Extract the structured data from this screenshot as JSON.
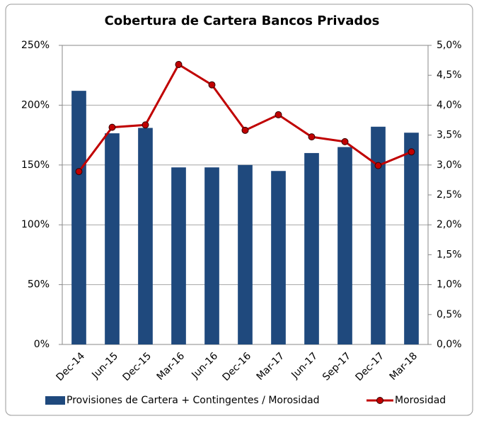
{
  "chart_data": {
    "type": "combo",
    "title": "Cobertura de Cartera Bancos Privados",
    "categories": [
      "Dec-14",
      "Jun-15",
      "Dec-15",
      "Mar-16",
      "Jun-16",
      "Dec-16",
      "Mar-17",
      "Jun-17",
      "Sep-17",
      "Dec-17",
      "Mar-18"
    ],
    "series": [
      {
        "name": "Provisiones de Cartera + Contingentes / Morosidad",
        "type": "bar",
        "color": "#1f497d",
        "axis": "y",
        "values": [
          212,
          176.5,
          181,
          148,
          148,
          150,
          145,
          160,
          165,
          182,
          177
        ]
      },
      {
        "name": "Morosidad",
        "type": "line",
        "color": "#c00000",
        "axis": "y2",
        "values": [
          2.89,
          3.63,
          3.67,
          4.68,
          4.34,
          3.58,
          3.84,
          3.47,
          3.39,
          2.99,
          3.22
        ]
      }
    ],
    "ylim": [
      0,
      250
    ],
    "yticks": [
      {
        "value": 0,
        "label": "0%"
      },
      {
        "value": 50,
        "label": "50%"
      },
      {
        "value": 100,
        "label": "100%"
      },
      {
        "value": 150,
        "label": "150%"
      },
      {
        "value": 200,
        "label": "200%"
      },
      {
        "value": 250,
        "label": "250%"
      }
    ],
    "y2lim": [
      0,
      5
    ],
    "y2ticks": [
      {
        "value": 0,
        "label": "0,0%"
      },
      {
        "value": 0.5,
        "label": "0,5%"
      },
      {
        "value": 1,
        "label": "1,0%"
      },
      {
        "value": 1.5,
        "label": "1,5%"
      },
      {
        "value": 2,
        "label": "2,0%"
      },
      {
        "value": 2.5,
        "label": "2,5%"
      },
      {
        "value": 3,
        "label": "3,0%"
      },
      {
        "value": 3.5,
        "label": "3,5%"
      },
      {
        "value": 4,
        "label": "4,0%"
      },
      {
        "value": 4.5,
        "label": "4,5%"
      },
      {
        "value": 5,
        "label": "5,0%"
      }
    ],
    "grid": true,
    "legend": "bottom"
  }
}
